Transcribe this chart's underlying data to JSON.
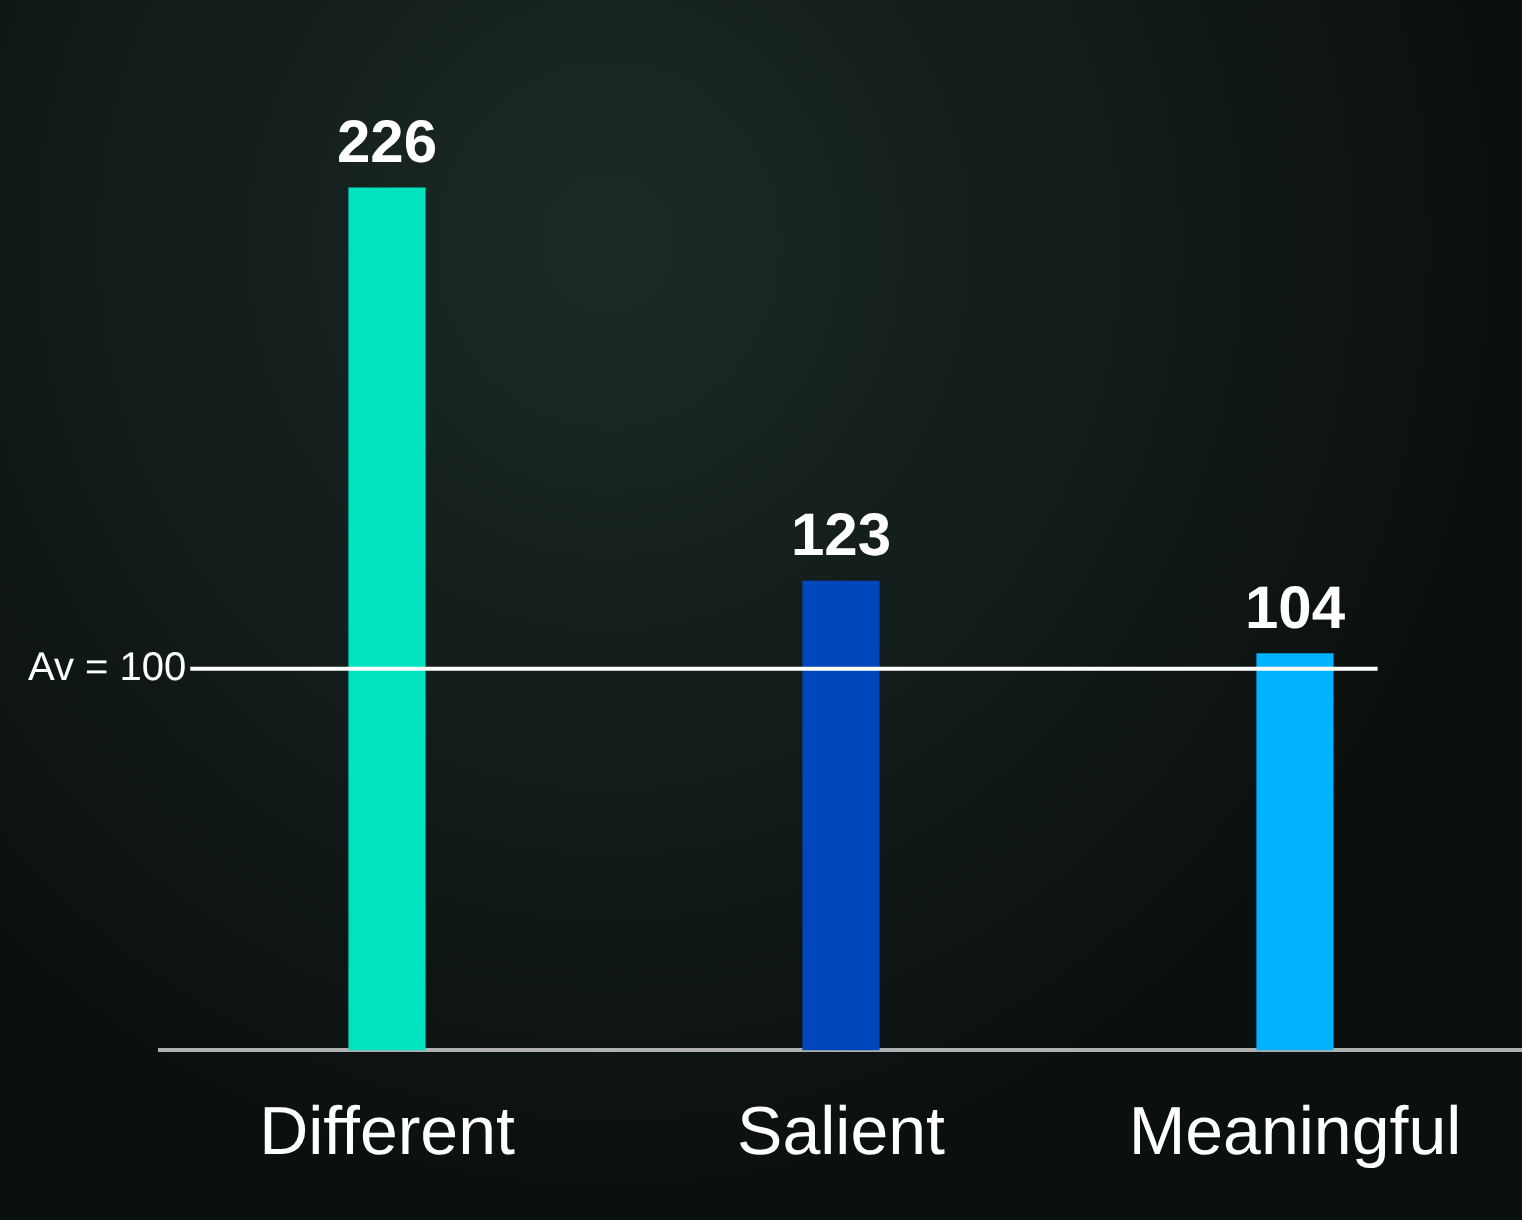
{
  "chart_data": {
    "type": "bar",
    "categories": [
      "Different",
      "Salient",
      "Meaningful"
    ],
    "values": [
      226,
      123,
      104
    ],
    "colors": [
      "#00e3c0",
      "#0047bb",
      "#00b2ff"
    ],
    "data_labels": true,
    "ref_lines": [
      {
        "axis": "y",
        "value": 100,
        "label": "Av = 100",
        "color": "#ffffff"
      }
    ],
    "grid": false,
    "legend": false
  }
}
